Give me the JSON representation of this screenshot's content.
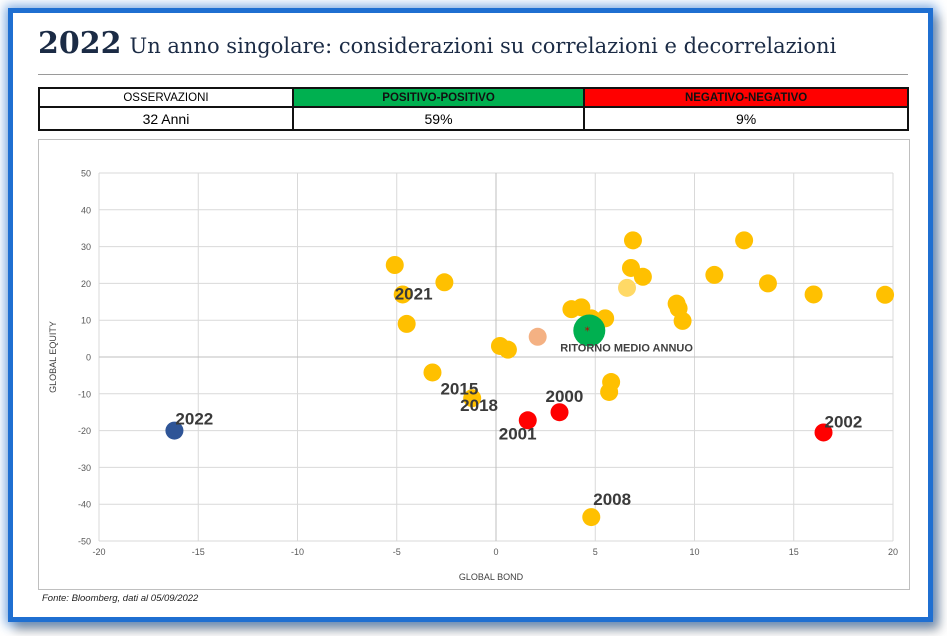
{
  "header": {
    "year": "2022",
    "title": "Un anno singolare: considerazioni su correlazioni e decorrelazioni"
  },
  "table": {
    "headers": [
      "OSSERVAZIONI",
      "POSITIVO-POSITIVO",
      "NEGATIVO-NEGATIVO"
    ],
    "values": [
      "32 Anni",
      "59%",
      "9%"
    ]
  },
  "colors": {
    "frame": "#1f6fd1",
    "positive": "#00b050",
    "negative": "#ff0000",
    "point": "#ffc000",
    "highlight": "#ff0000",
    "year2022": "#2f5597",
    "mean": "#00b050",
    "light": "#f4b183",
    "light2": "#ffd966"
  },
  "chart_data": {
    "type": "scatter",
    "xlabel": "GLOBAL BOND",
    "ylabel": "GLOBAL EQUITY",
    "xlim": [
      -20,
      20
    ],
    "ylim": [
      -50,
      50
    ],
    "xticks": [
      -20,
      -15,
      -10,
      -5,
      0,
      5,
      10,
      15,
      20
    ],
    "yticks": [
      50,
      40,
      30,
      20,
      10,
      0,
      -10,
      -20,
      -30,
      -40,
      -50
    ],
    "grid": true,
    "points": [
      {
        "x": -5.1,
        "y": 25.0,
        "color": "#ffc000",
        "label": ""
      },
      {
        "x": -4.7,
        "y": 17.0,
        "color": "#ffc000",
        "label": "2021"
      },
      {
        "x": -4.5,
        "y": 9.0,
        "color": "#ffc000",
        "label": ""
      },
      {
        "x": -2.6,
        "y": 20.3,
        "color": "#ffc000",
        "label": ""
      },
      {
        "x": -3.2,
        "y": -4.2,
        "color": "#ffc000",
        "label": "2015"
      },
      {
        "x": -1.2,
        "y": -11.2,
        "color": "#ffc000",
        "label": "2018"
      },
      {
        "x": 0.2,
        "y": 3.0,
        "color": "#ffc000",
        "label": ""
      },
      {
        "x": 0.6,
        "y": 2.0,
        "color": "#ffc000",
        "label": ""
      },
      {
        "x": 2.1,
        "y": 5.5,
        "color": "#f4b183",
        "label": ""
      },
      {
        "x": 3.8,
        "y": 13.0,
        "color": "#ffc000",
        "label": ""
      },
      {
        "x": 4.3,
        "y": 13.5,
        "color": "#ffc000",
        "label": ""
      },
      {
        "x": 4.8,
        "y": 10.5,
        "color": "#ffc000",
        "label": ""
      },
      {
        "x": 5.5,
        "y": 10.5,
        "color": "#ffc000",
        "label": ""
      },
      {
        "x": 5.7,
        "y": -9.5,
        "color": "#ffc000",
        "label": ""
      },
      {
        "x": 5.8,
        "y": -6.8,
        "color": "#ffc000",
        "label": ""
      },
      {
        "x": 6.6,
        "y": 18.8,
        "color": "#ffd966",
        "label": ""
      },
      {
        "x": 6.8,
        "y": 24.2,
        "color": "#ffc000",
        "label": ""
      },
      {
        "x": 6.9,
        "y": 31.7,
        "color": "#ffc000",
        "label": ""
      },
      {
        "x": 7.4,
        "y": 21.8,
        "color": "#ffc000",
        "label": ""
      },
      {
        "x": 9.1,
        "y": 14.5,
        "color": "#ffc000",
        "label": ""
      },
      {
        "x": 9.2,
        "y": 13.2,
        "color": "#ffc000",
        "label": ""
      },
      {
        "x": 9.4,
        "y": 9.8,
        "color": "#ffc000",
        "label": ""
      },
      {
        "x": 11.0,
        "y": 22.3,
        "color": "#ffc000",
        "label": ""
      },
      {
        "x": 12.5,
        "y": 31.7,
        "color": "#ffc000",
        "label": ""
      },
      {
        "x": 13.7,
        "y": 20.0,
        "color": "#ffc000",
        "label": ""
      },
      {
        "x": 16.0,
        "y": 17.0,
        "color": "#ffc000",
        "label": ""
      },
      {
        "x": 19.6,
        "y": 16.9,
        "color": "#ffc000",
        "label": ""
      },
      {
        "x": 4.8,
        "y": -43.5,
        "color": "#ffc000",
        "label": "2008"
      },
      {
        "x": 1.6,
        "y": -17.2,
        "color": "#ff0000",
        "label": "2001"
      },
      {
        "x": 3.2,
        "y": -15.0,
        "color": "#ff0000",
        "label": "2000"
      },
      {
        "x": 16.5,
        "y": -20.5,
        "color": "#ff0000",
        "label": "2002"
      },
      {
        "x": -16.2,
        "y": -20.0,
        "color": "#2f5597",
        "label": "2022"
      }
    ],
    "mean_point": {
      "x": 4.7,
      "y": 7.2,
      "label": "RITORNO MEDIO ANNUO"
    }
  },
  "source_note": "Fonte: Bloomberg, dati al 05/09/2022"
}
